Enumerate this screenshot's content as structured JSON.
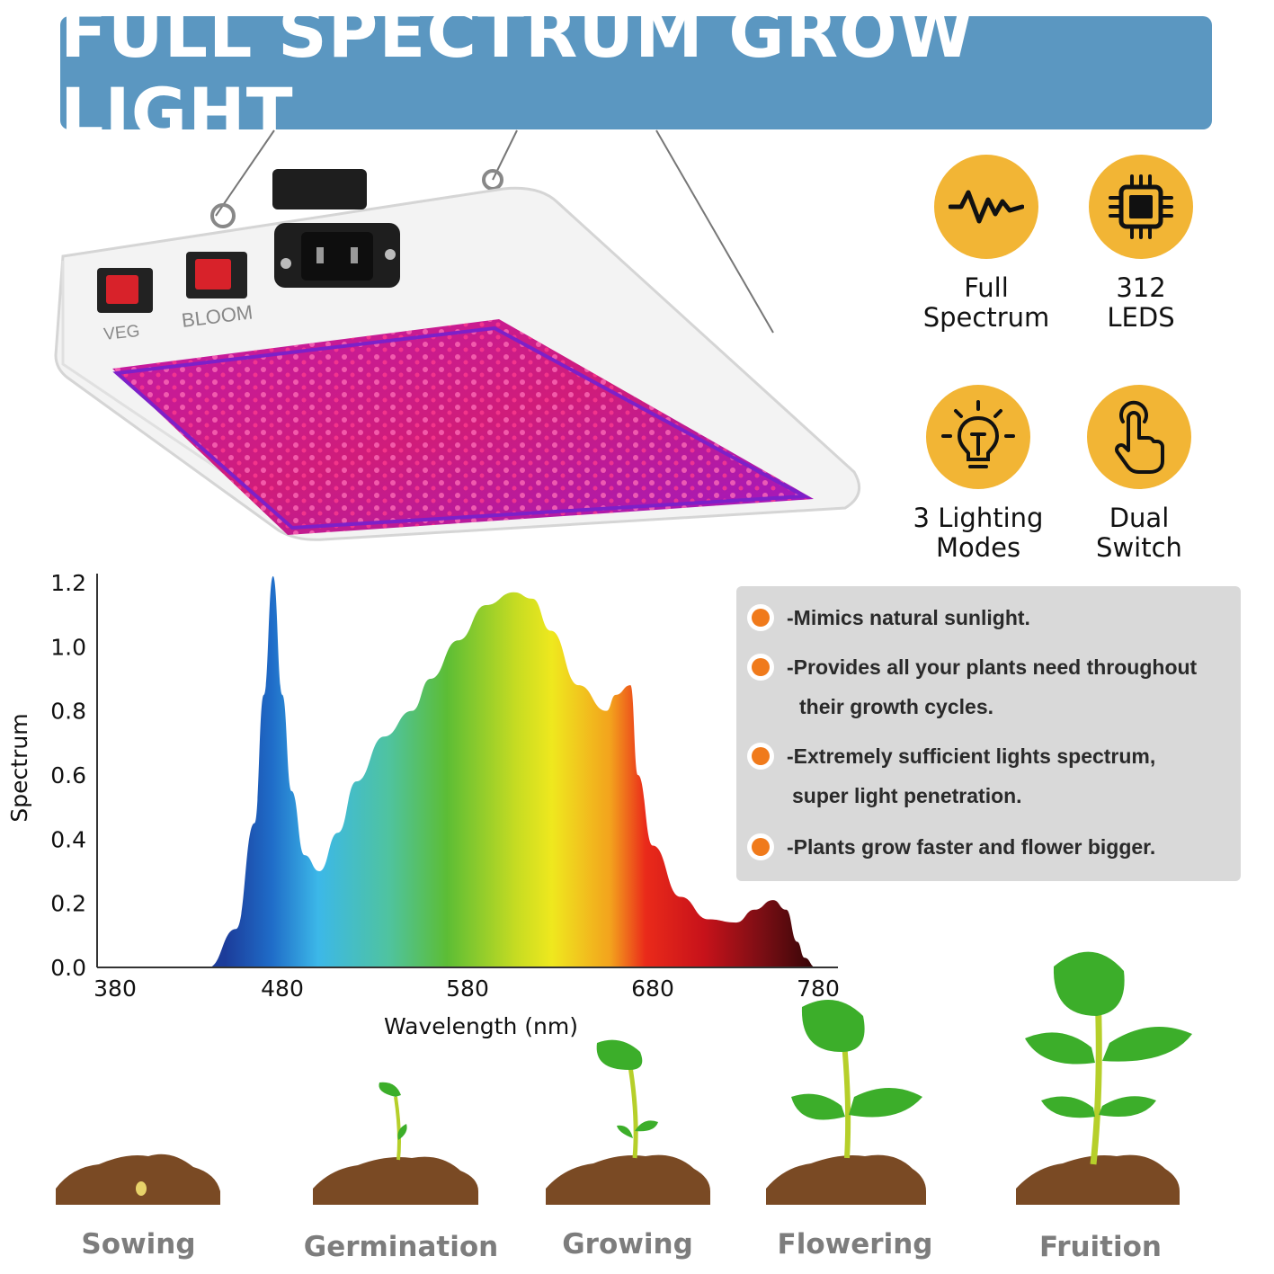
{
  "banner": {
    "title": "FULL SPECTRUM GROW LIGHT"
  },
  "product": {
    "switch_veg": "VEG",
    "switch_bloom": "BLOOM"
  },
  "features": [
    {
      "icon": "waveform-icon",
      "line1": "Full",
      "line2": "Spectrum"
    },
    {
      "icon": "chip-icon",
      "line1": "312",
      "line2": "LEDS"
    },
    {
      "icon": "bulb-icon",
      "line1": "3 Lighting",
      "line2": "Modes"
    },
    {
      "icon": "touch-hand-icon",
      "line1": "Dual",
      "line2": "Switch"
    }
  ],
  "benefits": [
    {
      "line1": "-Mimics natural sunlight.",
      "line2": ""
    },
    {
      "line1": "-Provides all your plants need throughout",
      "line2": "their growth cycles."
    },
    {
      "line1": "-Extremely sufficient lights spectrum,",
      "line2": "super light penetration."
    },
    {
      "line1": "-Plants grow faster and flower bigger.",
      "line2": ""
    }
  ],
  "colors": {
    "banner": "#5b97c1",
    "icon_circle": "#f2b535",
    "bullet": "#f07a1b",
    "soil": "#7a4a24",
    "leaf": "#3cae2a"
  },
  "chart_data": {
    "type": "area",
    "xlabel": "Wavelength (nm)",
    "ylabel": "Spectrum",
    "xlim": [
      380,
      780
    ],
    "ylim": [
      0,
      1.2
    ],
    "x_ticks": [
      "380",
      "480",
      "580",
      "680",
      "780"
    ],
    "y_ticks": [
      "0.0",
      "0.2",
      "0.4",
      "0.6",
      "0.8",
      "1.0",
      "1.2"
    ],
    "series": [
      {
        "x": [
          440,
          455,
          465,
          470,
          475,
          480,
          485,
          492,
          500,
          510,
          520,
          535,
          550,
          560,
          575,
          590,
          605,
          615,
          625,
          640,
          655,
          660,
          668,
          672,
          680,
          695,
          710,
          725,
          735,
          745,
          752,
          758,
          762,
          768
        ],
        "values": [
          0.0,
          0.12,
          0.45,
          0.85,
          1.22,
          0.85,
          0.55,
          0.35,
          0.3,
          0.42,
          0.58,
          0.72,
          0.8,
          0.9,
          1.02,
          1.13,
          1.17,
          1.15,
          1.05,
          0.88,
          0.8,
          0.85,
          0.88,
          0.6,
          0.38,
          0.22,
          0.15,
          0.14,
          0.18,
          0.21,
          0.18,
          0.08,
          0.03,
          0.0
        ]
      }
    ]
  },
  "stages": [
    "Sowing",
    "Germination",
    "Growing",
    "Flowering",
    "Fruition"
  ]
}
